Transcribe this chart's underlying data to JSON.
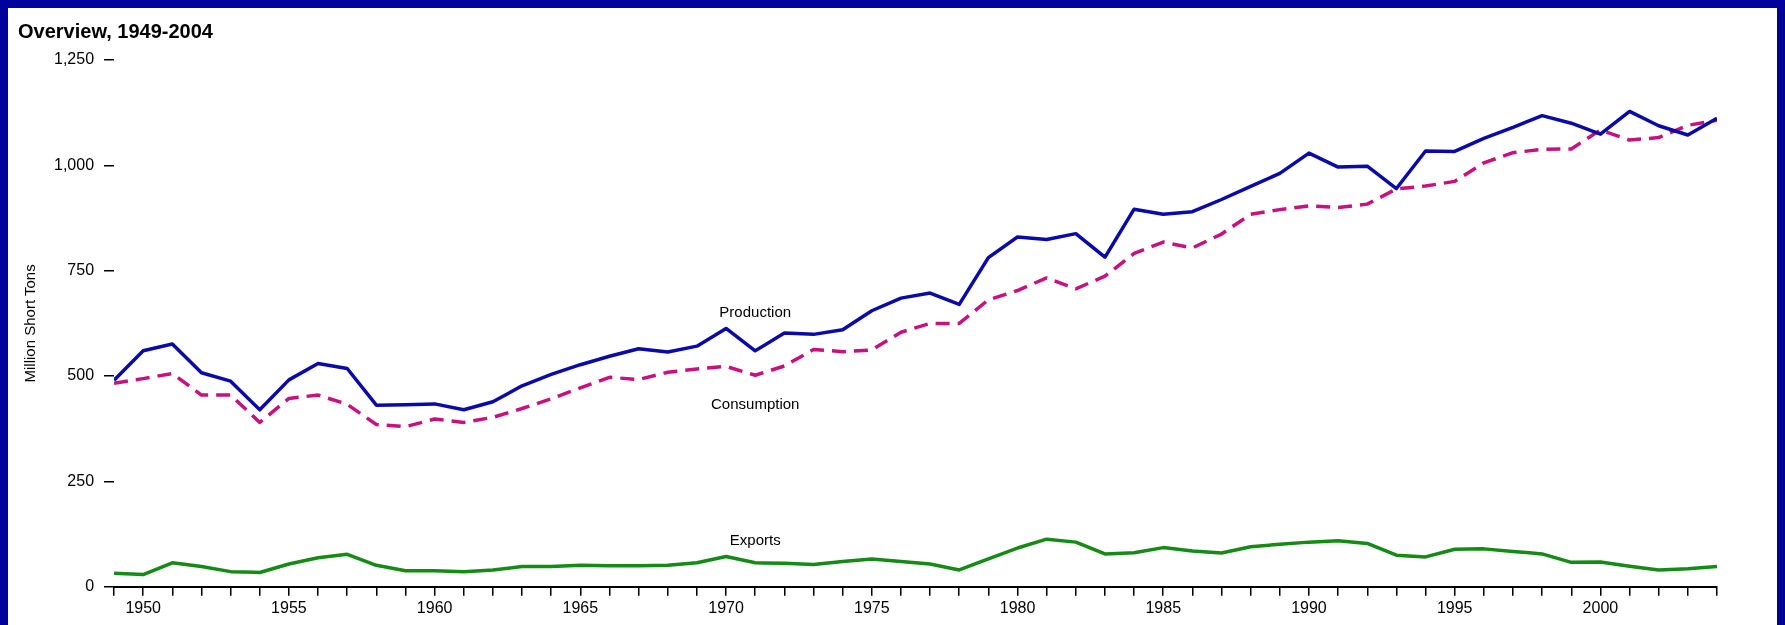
{
  "chart_data": {
    "type": "line",
    "title": "Overview, 1949-2004",
    "ylabel": "Million Short Tons",
    "x": [
      1949,
      1950,
      1951,
      1952,
      1953,
      1954,
      1955,
      1956,
      1957,
      1958,
      1959,
      1960,
      1961,
      1962,
      1963,
      1964,
      1965,
      1966,
      1967,
      1968,
      1969,
      1970,
      1971,
      1972,
      1973,
      1974,
      1975,
      1976,
      1977,
      1978,
      1979,
      1980,
      1981,
      1982,
      1983,
      1984,
      1985,
      1986,
      1987,
      1988,
      1989,
      1990,
      1991,
      1992,
      1993,
      1994,
      1995,
      1996,
      1997,
      1998,
      1999,
      2000,
      2001,
      2002,
      2003,
      2004
    ],
    "series": [
      {
        "name": "Production",
        "color": "#0a0aa8",
        "line_style": "solid",
        "values": [
          490,
          560,
          576,
          508,
          488,
          420,
          491,
          530,
          518,
          431,
          432,
          434,
          420,
          439,
          477,
          504,
          527,
          547,
          565,
          557,
          571,
          613,
          560,
          602,
          599,
          610,
          655,
          685,
          697,
          670,
          781,
          830,
          824,
          838,
          782,
          896,
          884,
          890,
          919,
          950,
          981,
          1029,
          996,
          998,
          945,
          1034,
          1033,
          1064,
          1090,
          1118,
          1100,
          1074,
          1128,
          1094,
          1072,
          1112
        ]
      },
      {
        "name": "Consumption",
        "color": "#c8107e",
        "line_style": "dashed",
        "values": [
          483,
          494,
          506,
          455,
          455,
          390,
          447,
          455,
          433,
          385,
          380,
          398,
          390,
          402,
          423,
          446,
          472,
          497,
          492,
          509,
          517,
          523,
          502,
          524,
          563,
          558,
          562,
          604,
          625,
          625,
          681,
          703,
          733,
          707,
          737,
          791,
          818,
          804,
          837,
          884,
          895,
          904,
          900,
          908,
          944,
          951,
          962,
          1006,
          1030,
          1038,
          1039,
          1084,
          1060,
          1066,
          1095,
          1107
        ]
      },
      {
        "name": "Exports",
        "color": "#158a15",
        "line_style": "solid",
        "values": [
          32,
          29,
          57,
          48,
          36,
          34,
          54,
          69,
          77,
          51,
          38,
          38,
          36,
          40,
          48,
          48,
          51,
          50,
          50,
          51,
          57,
          72,
          57,
          56,
          53,
          60,
          66,
          60,
          54,
          40,
          66,
          92,
          113,
          106,
          78,
          81,
          93,
          85,
          80,
          95,
          101,
          106,
          109,
          103,
          75,
          71,
          89,
          90,
          84,
          78,
          58,
          59,
          49,
          40,
          43,
          48
        ]
      }
    ],
    "xlim": [
      1949,
      2004
    ],
    "xticks": [
      {
        "value": 1949,
        "label": null
      },
      1950,
      {
        "value": 1951,
        "label": null
      },
      {
        "value": 1952,
        "label": null
      },
      {
        "value": 1953,
        "label": null
      },
      {
        "value": 1954,
        "label": null
      },
      1955,
      {
        "value": 1956,
        "label": null
      },
      {
        "value": 1957,
        "label": null
      },
      {
        "value": 1958,
        "label": null
      },
      {
        "value": 1959,
        "label": null
      },
      1960,
      {
        "value": 1961,
        "label": null
      },
      {
        "value": 1962,
        "label": null
      },
      {
        "value": 1963,
        "label": null
      },
      {
        "value": 1964,
        "label": null
      },
      1965,
      {
        "value": 1966,
        "label": null
      },
      {
        "value": 1967,
        "label": null
      },
      {
        "value": 1968,
        "label": null
      },
      {
        "value": 1969,
        "label": null
      },
      1970,
      {
        "value": 1971,
        "label": null
      },
      {
        "value": 1972,
        "label": null
      },
      {
        "value": 1973,
        "label": null
      },
      {
        "value": 1974,
        "label": null
      },
      1975,
      {
        "value": 1976,
        "label": null
      },
      {
        "value": 1977,
        "label": null
      },
      {
        "value": 1978,
        "label": null
      },
      {
        "value": 1979,
        "label": null
      },
      1980,
      {
        "value": 1981,
        "label": null
      },
      {
        "value": 1982,
        "label": null
      },
      {
        "value": 1983,
        "label": null
      },
      {
        "value": 1984,
        "label": null
      },
      1985,
      {
        "value": 1986,
        "label": null
      },
      {
        "value": 1987,
        "label": null
      },
      {
        "value": 1988,
        "label": null
      },
      {
        "value": 1989,
        "label": null
      },
      1990,
      {
        "value": 1991,
        "label": null
      },
      {
        "value": 1992,
        "label": null
      },
      {
        "value": 1993,
        "label": null
      },
      {
        "value": 1994,
        "label": null
      },
      1995,
      {
        "value": 1996,
        "label": null
      },
      {
        "value": 1997,
        "label": null
      },
      {
        "value": 1998,
        "label": null
      },
      {
        "value": 1999,
        "label": null
      },
      2000,
      {
        "value": 2001,
        "label": null
      },
      {
        "value": 2002,
        "label": null
      },
      {
        "value": 2003,
        "label": null
      },
      {
        "value": 2004,
        "label": null
      }
    ],
    "ylim": [
      0,
      1250
    ],
    "yticks": [
      0,
      250,
      500,
      750,
      {
        "value": 1000,
        "label": "1,000"
      },
      {
        "value": 1250,
        "label": "1,250"
      }
    ],
    "grid": false,
    "legend": false,
    "marker": "none"
  }
}
